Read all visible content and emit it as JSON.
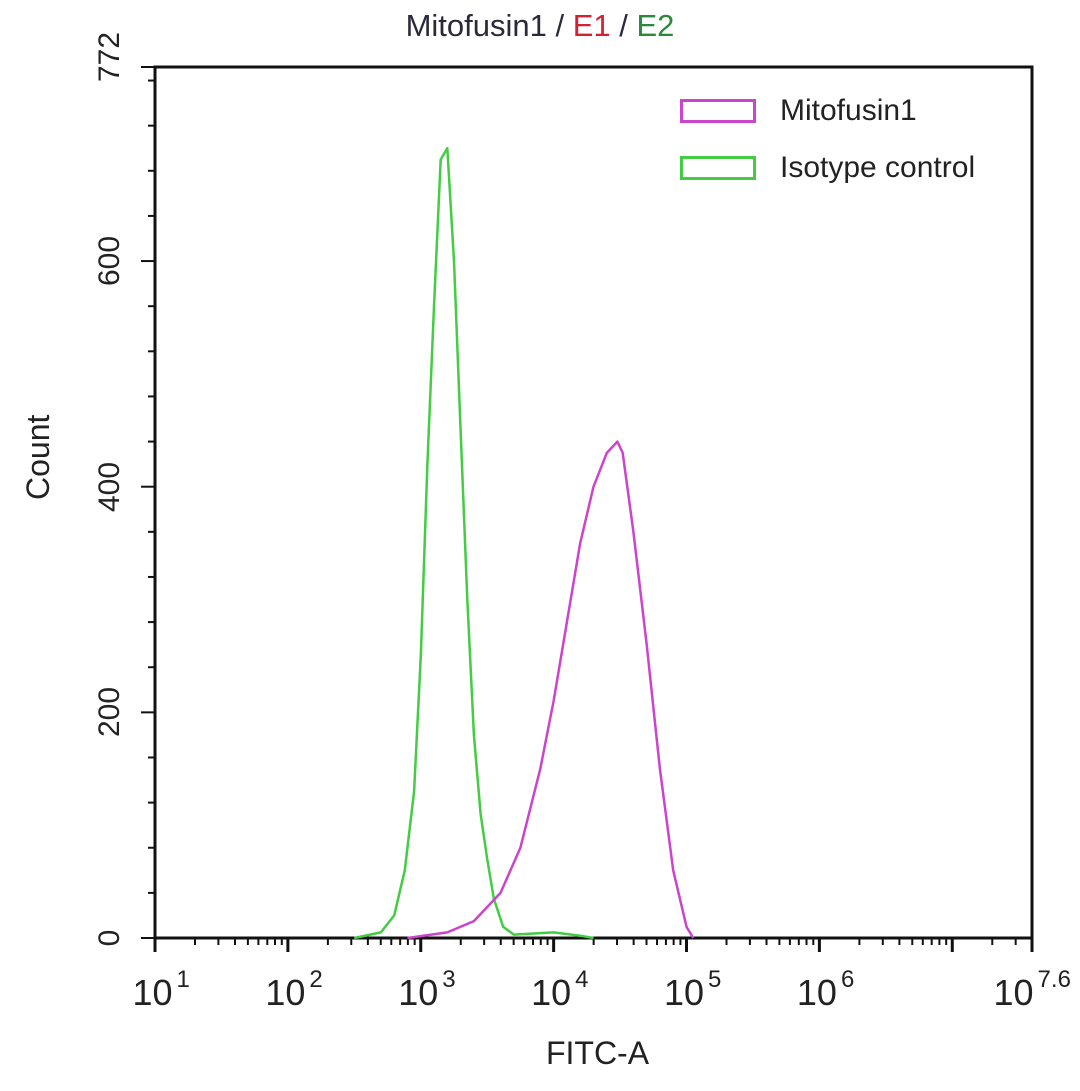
{
  "title": {
    "part1": "Mitofusin1",
    "sep1": " / ",
    "part2": "E1",
    "sep2": " / ",
    "part3": "E2"
  },
  "legend": [
    {
      "label": "Mitofusin1",
      "color": "#cc44cc"
    },
    {
      "label": "Isotype control",
      "color": "#44cc44"
    }
  ],
  "axes": {
    "xlabel": "FITC-A",
    "ylabel": "Count",
    "yticks": [
      "0",
      "200",
      "400",
      "600",
      "772"
    ],
    "xticks": [
      {
        "base": "10",
        "exp": "1"
      },
      {
        "base": "10",
        "exp": "2"
      },
      {
        "base": "10",
        "exp": "3"
      },
      {
        "base": "10",
        "exp": "4"
      },
      {
        "base": "10",
        "exp": "5"
      },
      {
        "base": "10",
        "exp": "6"
      },
      {
        "base": "10",
        "exp": "7.6"
      }
    ]
  },
  "chart_data": {
    "type": "line",
    "title": "Mitofusin1 / E1 / E2",
    "xlabel": "FITC-A",
    "ylabel": "Count",
    "xscale": "log",
    "xlim_log10": [
      1,
      7.6
    ],
    "ylim": [
      0,
      772
    ],
    "grid": false,
    "legend_position": "top-right",
    "series": [
      {
        "name": "Isotype control",
        "color": "#44cc44",
        "x_log10": [
          2.5,
          2.7,
          2.8,
          2.88,
          2.95,
          3.0,
          3.05,
          3.1,
          3.15,
          3.2,
          3.25,
          3.3,
          3.35,
          3.4,
          3.45,
          3.5,
          3.55,
          3.62,
          3.7,
          4.0,
          4.2,
          4.3
        ],
        "values": [
          0,
          5,
          20,
          60,
          130,
          250,
          420,
          560,
          690,
          700,
          600,
          450,
          300,
          180,
          110,
          70,
          35,
          10,
          3,
          5,
          2,
          0
        ]
      },
      {
        "name": "Mitofusin1",
        "color": "#cc44cc",
        "x_log10": [
          2.9,
          3.2,
          3.4,
          3.6,
          3.75,
          3.9,
          4.0,
          4.1,
          4.2,
          4.3,
          4.4,
          4.48,
          4.52,
          4.6,
          4.7,
          4.8,
          4.9,
          5.0,
          5.05
        ],
        "values": [
          0,
          5,
          15,
          40,
          80,
          150,
          210,
          280,
          350,
          400,
          430,
          440,
          430,
          360,
          260,
          150,
          60,
          10,
          0
        ]
      }
    ]
  }
}
